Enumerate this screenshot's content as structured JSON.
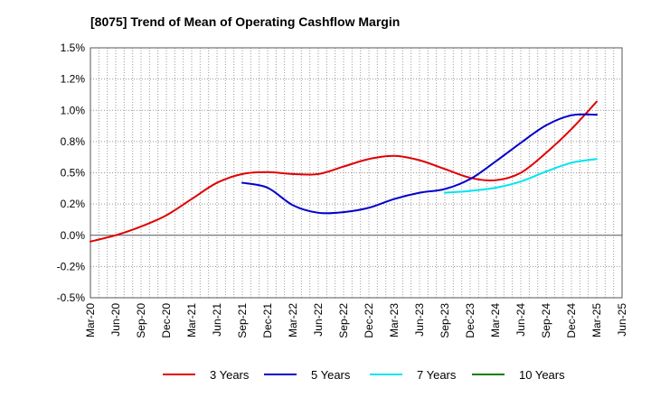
{
  "chart_data": {
    "type": "line",
    "title": "[8075]  Trend of Mean of Operating Cashflow Margin",
    "xlabel": "",
    "ylabel": "",
    "x_ticks": [
      "Mar-20",
      "Jun-20",
      "Sep-20",
      "Dec-20",
      "Mar-21",
      "Jun-21",
      "Sep-21",
      "Dec-21",
      "Mar-22",
      "Jun-22",
      "Sep-22",
      "Dec-22",
      "Mar-23",
      "Jun-23",
      "Sep-23",
      "Dec-23",
      "Mar-24",
      "Jun-24",
      "Sep-24",
      "Dec-24",
      "Mar-25",
      "Jun-25"
    ],
    "y_ticks": [
      "1.5%",
      "1.2%",
      "1.0%",
      "0.8%",
      "0.5%",
      "0.2%",
      "0.0%",
      "-0.2%",
      "-0.5%"
    ],
    "y_tick_values": [
      1.5,
      1.25,
      1.0,
      0.75,
      0.5,
      0.25,
      0.0,
      -0.25,
      -0.5
    ],
    "ylim": [
      -0.5,
      1.5
    ],
    "grid": true,
    "legend_position": "bottom",
    "series": [
      {
        "name": "3 Years",
        "color": "#e00000",
        "x": [
          "Mar-20",
          "Jun-20",
          "Sep-20",
          "Dec-20",
          "Mar-21",
          "Jun-21",
          "Sep-21",
          "Dec-21",
          "Mar-22",
          "Jun-22",
          "Sep-22",
          "Dec-22",
          "Mar-23",
          "Jun-23",
          "Sep-23",
          "Dec-23",
          "Mar-24",
          "Jun-24",
          "Sep-24",
          "Dec-24",
          "Mar-25"
        ],
        "values": [
          -0.05,
          0.0,
          0.07,
          0.16,
          0.29,
          0.42,
          0.49,
          0.505,
          0.49,
          0.49,
          0.55,
          0.61,
          0.635,
          0.6,
          0.53,
          0.46,
          0.44,
          0.5,
          0.66,
          0.85,
          1.07
        ]
      },
      {
        "name": "5 Years",
        "color": "#0000cc",
        "x": [
          "Sep-21",
          "Dec-21",
          "Mar-22",
          "Jun-22",
          "Sep-22",
          "Dec-22",
          "Mar-23",
          "Jun-23",
          "Sep-23",
          "Dec-23",
          "Mar-24",
          "Jun-24",
          "Sep-24",
          "Dec-24",
          "Mar-25"
        ],
        "values": [
          0.42,
          0.38,
          0.24,
          0.18,
          0.185,
          0.22,
          0.29,
          0.34,
          0.37,
          0.45,
          0.59,
          0.74,
          0.88,
          0.96,
          0.965
        ]
      },
      {
        "name": "7 Years",
        "color": "#00e5ee",
        "x": [
          "Sep-23",
          "Dec-23",
          "Mar-24",
          "Jun-24",
          "Sep-24",
          "Dec-24",
          "Mar-25"
        ],
        "values": [
          0.34,
          0.355,
          0.38,
          0.43,
          0.51,
          0.58,
          0.61
        ]
      },
      {
        "name": "10 Years",
        "color": "#008000",
        "x": [],
        "values": []
      }
    ]
  }
}
